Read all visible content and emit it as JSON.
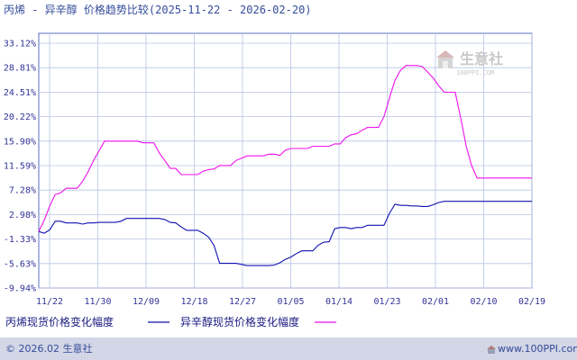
{
  "colors": {
    "frame": "#5a6fbf",
    "grid": "#b8c4e6",
    "text": "#333399",
    "footer_bar": "#d3d6e6",
    "series1": "#1010b0",
    "series2": "#ee11ee"
  },
  "footer": {
    "copyright": "© 2026.02 生意社",
    "url": "www.100PPI.com"
  },
  "watermark": {
    "name": "生意社",
    "url": "100PPI.COM"
  },
  "chart_data": {
    "type": "line",
    "title": "丙烯 - 异辛醇 价格趋势比较(2025-11-22 - 2026-02-20)",
    "xlabel": "",
    "ylabel": "",
    "ylim": [
      -9.94,
      33.12
    ],
    "yticks": [
      "33.12%",
      "28.81%",
      "24.51%",
      "20.22%",
      "15.90%",
      "11.59%",
      "7.28%",
      "2.98%",
      "-1.33%",
      "-5.63%",
      "-9.94%"
    ],
    "xticks": [
      "11/22",
      "11/30",
      "12/09",
      "12/18",
      "12/27",
      "01/05",
      "01/14",
      "01/23",
      "02/01",
      "02/10",
      "02/19"
    ],
    "grid": true,
    "legend_position": "bottom",
    "series": [
      {
        "name": "丙烯现货价格变化幅度",
        "color": "#1010b0",
        "points": [
          [
            0,
            0
          ],
          [
            1,
            -0.3
          ],
          [
            2,
            0.3
          ],
          [
            3,
            1.8
          ],
          [
            4,
            1.8
          ],
          [
            5,
            1.5
          ],
          [
            6,
            1.5
          ],
          [
            7,
            1.5
          ],
          [
            8,
            1.3
          ],
          [
            9,
            1.5
          ],
          [
            10,
            1.5
          ],
          [
            11,
            1.6
          ],
          [
            12,
            1.6
          ],
          [
            13,
            1.6
          ],
          [
            14,
            1.6
          ],
          [
            15,
            1.8
          ],
          [
            16,
            2.3
          ],
          [
            17,
            2.3
          ],
          [
            18,
            2.3
          ],
          [
            19,
            2.3
          ],
          [
            20,
            2.3
          ],
          [
            21,
            2.3
          ],
          [
            22,
            2.3
          ],
          [
            23,
            2.1
          ],
          [
            24,
            1.6
          ],
          [
            25,
            1.5
          ],
          [
            26,
            0.8
          ],
          [
            27,
            0.2
          ],
          [
            28,
            0.2
          ],
          [
            29,
            0.2
          ],
          [
            30,
            -0.3
          ],
          [
            31,
            -1.0
          ],
          [
            32,
            -2.5
          ],
          [
            33,
            -5.6
          ],
          [
            34,
            -5.6
          ],
          [
            35,
            -5.6
          ],
          [
            36,
            -5.6
          ],
          [
            37,
            -5.8
          ],
          [
            38,
            -6.0
          ],
          [
            39,
            -6.0
          ],
          [
            40,
            -6.0
          ],
          [
            41,
            -6.0
          ],
          [
            42,
            -6.0
          ],
          [
            43,
            -5.9
          ],
          [
            44,
            -5.5
          ],
          [
            45,
            -4.9
          ],
          [
            46,
            -4.5
          ],
          [
            47,
            -3.9
          ],
          [
            48,
            -3.4
          ],
          [
            49,
            -3.4
          ],
          [
            50,
            -3.4
          ],
          [
            51,
            -2.4
          ],
          [
            52,
            -1.9
          ],
          [
            53,
            -1.8
          ],
          [
            54,
            0.5
          ],
          [
            55,
            0.7
          ],
          [
            56,
            0.7
          ],
          [
            57,
            0.5
          ],
          [
            58,
            0.7
          ],
          [
            59,
            0.7
          ],
          [
            60,
            1.1
          ],
          [
            61,
            1.1
          ],
          [
            62,
            1.1
          ],
          [
            63,
            1.1
          ],
          [
            64,
            3.2
          ],
          [
            65,
            4.8
          ],
          [
            66,
            4.6
          ],
          [
            67,
            4.6
          ],
          [
            68,
            4.5
          ],
          [
            69,
            4.5
          ],
          [
            70,
            4.4
          ],
          [
            71,
            4.4
          ],
          [
            72,
            4.7
          ],
          [
            73,
            5.1
          ],
          [
            74,
            5.3
          ],
          [
            75,
            5.3
          ],
          [
            76,
            5.3
          ],
          [
            90,
            5.3
          ]
        ]
      },
      {
        "name": "异辛醇现货价格变化幅度",
        "color": "#ee11ee",
        "points": [
          [
            0,
            0
          ],
          [
            1,
            2.0
          ],
          [
            2,
            4.5
          ],
          [
            3,
            6.5
          ],
          [
            4,
            6.8
          ],
          [
            5,
            7.6
          ],
          [
            6,
            7.6
          ],
          [
            7,
            7.6
          ],
          [
            8,
            8.8
          ],
          [
            9,
            10.5
          ],
          [
            10,
            12.5
          ],
          [
            11,
            14.2
          ],
          [
            12,
            15.9
          ],
          [
            13,
            15.9
          ],
          [
            14,
            15.9
          ],
          [
            15,
            15.9
          ],
          [
            16,
            15.9
          ],
          [
            17,
            15.9
          ],
          [
            18,
            15.9
          ],
          [
            19,
            15.6
          ],
          [
            20,
            15.6
          ],
          [
            21,
            15.6
          ],
          [
            22,
            13.8
          ],
          [
            23,
            12.5
          ],
          [
            24,
            11.1
          ],
          [
            25,
            11.1
          ],
          [
            26,
            10.0
          ],
          [
            27,
            10.0
          ],
          [
            28,
            10.0
          ],
          [
            29,
            10.0
          ],
          [
            30,
            10.6
          ],
          [
            31,
            10.9
          ],
          [
            32,
            11.0
          ],
          [
            33,
            11.6
          ],
          [
            34,
            11.6
          ],
          [
            35,
            11.6
          ],
          [
            36,
            12.5
          ],
          [
            37,
            12.9
          ],
          [
            38,
            13.3
          ],
          [
            39,
            13.3
          ],
          [
            40,
            13.3
          ],
          [
            41,
            13.3
          ],
          [
            42,
            13.6
          ],
          [
            43,
            13.6
          ],
          [
            44,
            13.4
          ],
          [
            45,
            14.3
          ],
          [
            46,
            14.6
          ],
          [
            47,
            14.6
          ],
          [
            48,
            14.6
          ],
          [
            49,
            14.6
          ],
          [
            50,
            15.0
          ],
          [
            51,
            15.0
          ],
          [
            52,
            15.0
          ],
          [
            53,
            15.0
          ],
          [
            54,
            15.4
          ],
          [
            55,
            15.4
          ],
          [
            56,
            16.5
          ],
          [
            57,
            17.0
          ],
          [
            58,
            17.2
          ],
          [
            59,
            17.8
          ],
          [
            60,
            18.3
          ],
          [
            61,
            18.3
          ],
          [
            62,
            18.3
          ],
          [
            63,
            20.2
          ],
          [
            64,
            23.5
          ],
          [
            65,
            26.6
          ],
          [
            66,
            28.3
          ],
          [
            67,
            29.2
          ],
          [
            68,
            29.2
          ],
          [
            69,
            29.2
          ],
          [
            70,
            29.0
          ],
          [
            71,
            28.0
          ],
          [
            72,
            27.0
          ],
          [
            73,
            25.6
          ],
          [
            74,
            24.5
          ],
          [
            75,
            24.5
          ],
          [
            76,
            24.5
          ],
          [
            77,
            20.0
          ],
          [
            78,
            15.0
          ],
          [
            79,
            11.6
          ],
          [
            80,
            9.4
          ],
          [
            81,
            9.4
          ],
          [
            82,
            9.4
          ],
          [
            83,
            9.4
          ],
          [
            84,
            9.4
          ],
          [
            85,
            9.4
          ],
          [
            86,
            9.4
          ],
          [
            87,
            9.4
          ],
          [
            88,
            9.4
          ],
          [
            89,
            9.4
          ],
          [
            90,
            9.4
          ]
        ]
      }
    ]
  }
}
